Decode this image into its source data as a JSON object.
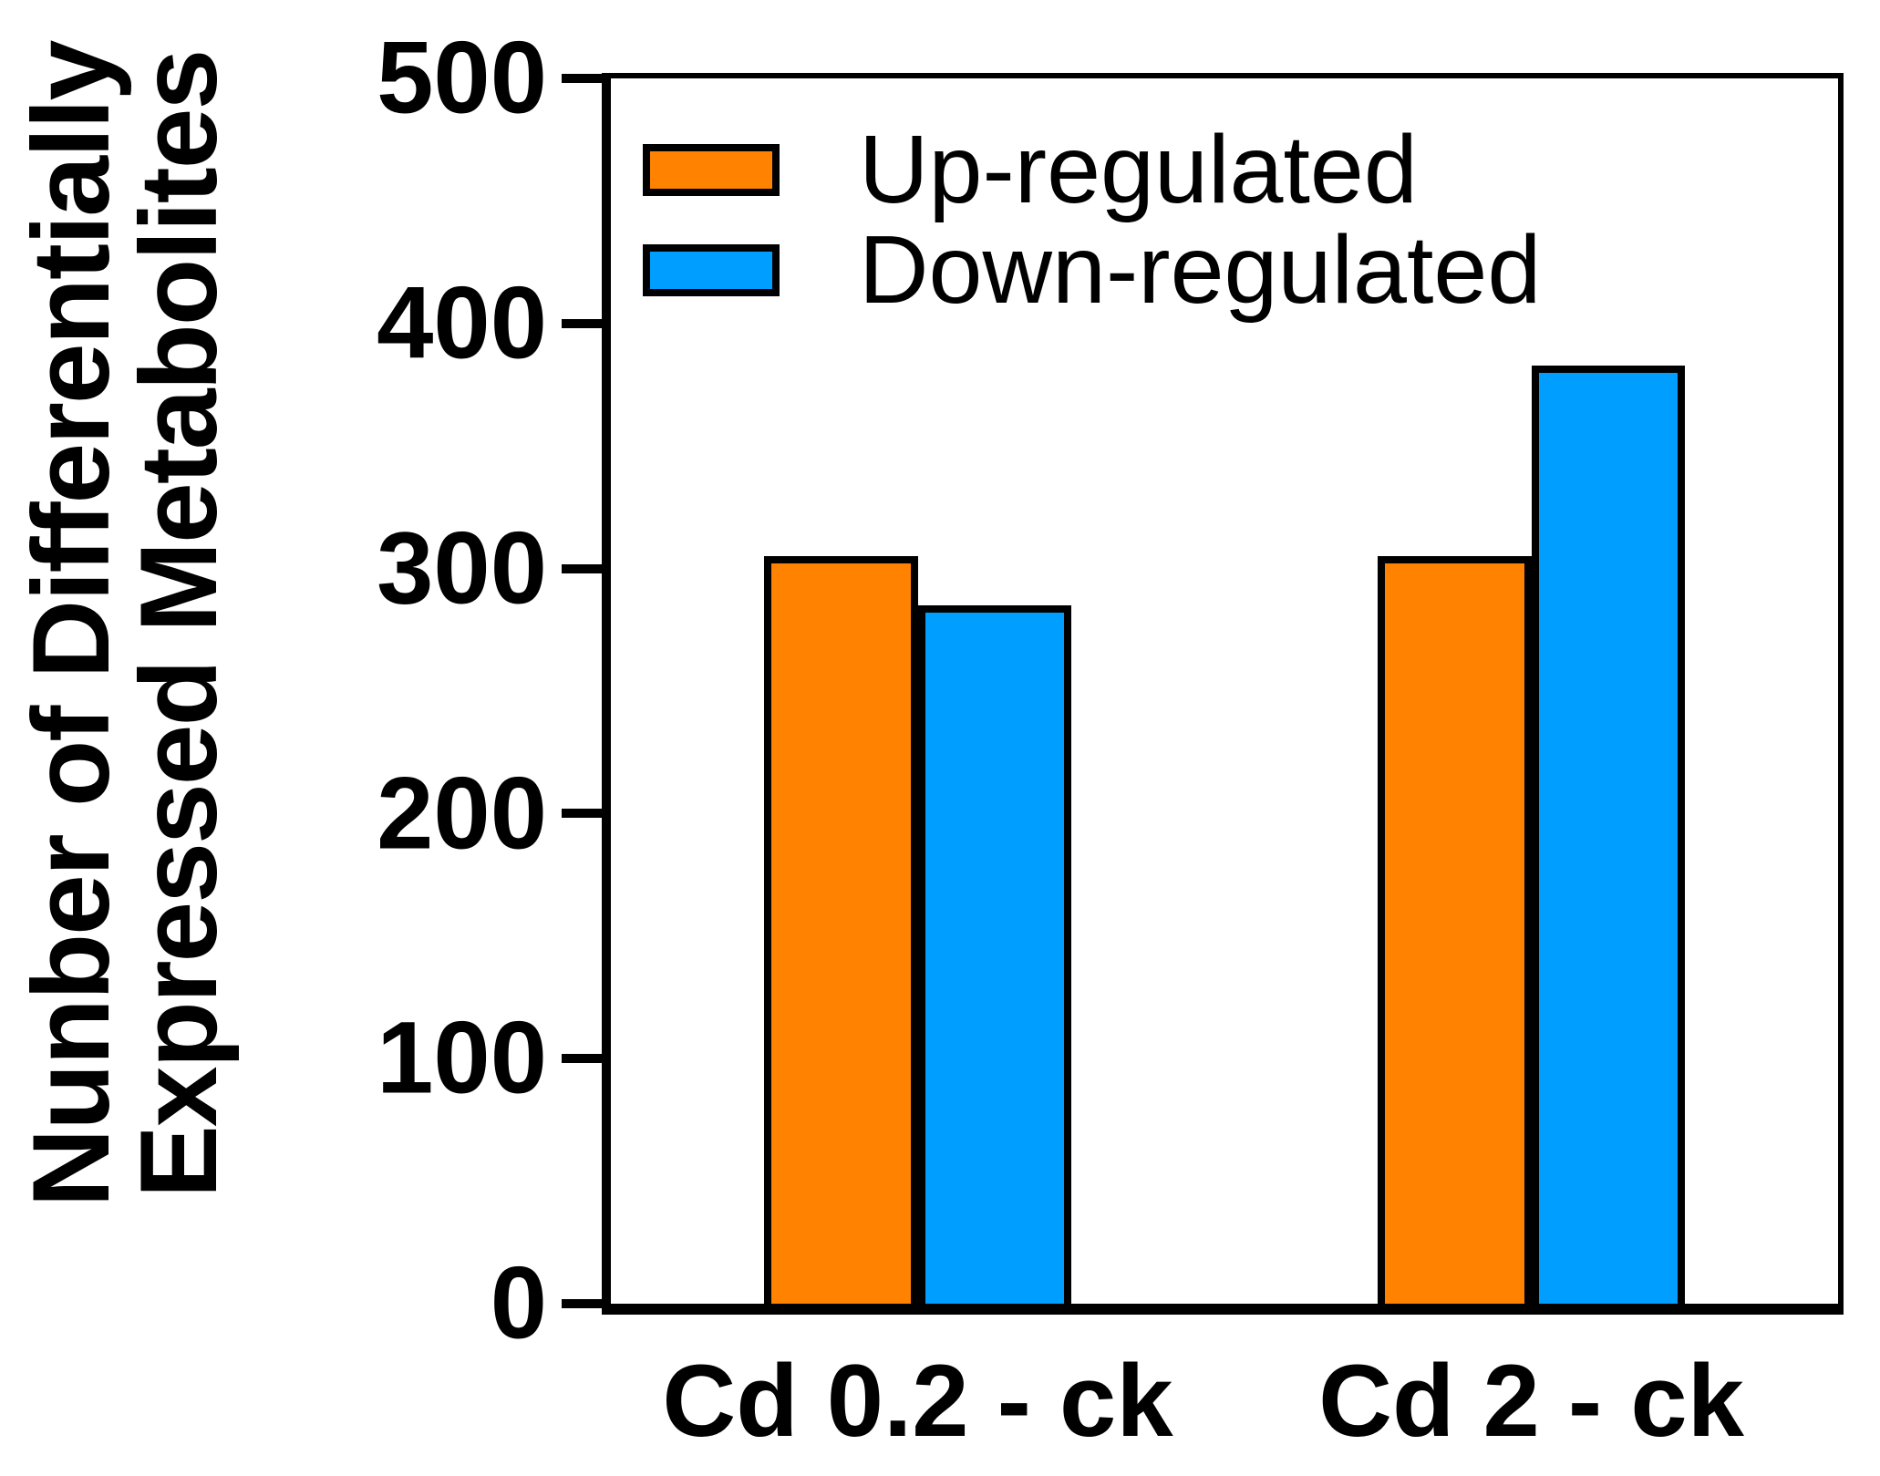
{
  "figure": {
    "background": "#ffffff",
    "axis_color": "#000000"
  },
  "chart_data": {
    "type": "bar",
    "title": "",
    "ylabel_lines": [
      "Nunber of Differentially",
      "Expressed Metabolites"
    ],
    "xlabel": "",
    "categories": [
      "Cd 0.2 - ck",
      "Cd 2 - ck"
    ],
    "series": [
      {
        "name": "Up-regulated",
        "color": "#FF8200",
        "values": [
          305,
          305
        ]
      },
      {
        "name": "Down-regulated",
        "color": "#009FFF",
        "values": [
          285,
          383
        ]
      }
    ],
    "ylim": [
      0,
      500
    ],
    "yticks": [
      0,
      100,
      200,
      300,
      400,
      500
    ],
    "legend_position": "top-left-inside",
    "grid": false,
    "bar_border_color": "#000000",
    "group_centers_fraction": [
      0.25,
      0.75
    ],
    "bar_width_fraction": 0.125
  }
}
